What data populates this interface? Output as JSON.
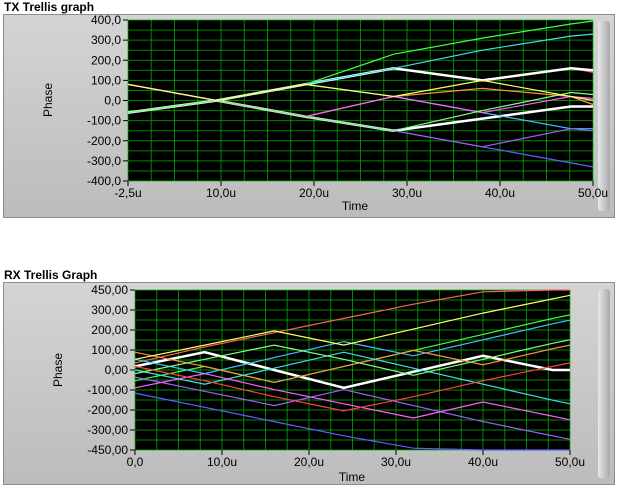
{
  "tx": {
    "title": "TX Trellis graph",
    "xlabel": "Time",
    "ylabel": "Phase",
    "yticks": [
      "400,0",
      "300,0",
      "200,0",
      "100,0",
      "0,0",
      "-100,0",
      "-200,0",
      "-300,0",
      "-400,0"
    ],
    "xticks": [
      "-2,5u",
      "10,0u",
      "20,0u",
      "30,0u",
      "40,0u",
      "50,0u"
    ]
  },
  "rx": {
    "title": "RX Trellis Graph",
    "xlabel": "Time",
    "ylabel": "Phase",
    "yticks": [
      "450,00",
      "300,00",
      "200,00",
      "100,00",
      "0,00",
      "-100,00",
      "-200,00",
      "-300,00",
      "-450,00"
    ],
    "xticks": [
      "0,0",
      "10,0u",
      "20,0u",
      "30,0u",
      "40,0u",
      "50,0u"
    ]
  },
  "colors": {
    "plot_bg": "#000000",
    "grid": "#00b400",
    "frame": "#c8c8c8"
  },
  "chart_data": [
    {
      "type": "line",
      "title": "TX Trellis graph",
      "xlabel": "Time",
      "ylabel": "Phase",
      "xlim": [
        -2.5,
        50
      ],
      "ylim": [
        -400,
        400
      ],
      "x": [
        -2.5,
        7.5,
        17.5,
        27.5,
        37.5,
        47.5,
        50
      ],
      "series": [
        {
          "color": "#ffffff",
          "values": [
            -60,
            0,
            -80,
            -150,
            -90,
            -30,
            -30
          ]
        },
        {
          "color": "#ff6060",
          "values": [
            80,
            0,
            80,
            160,
            100,
            160,
            140
          ]
        },
        {
          "color": "#ffffff",
          "values": [
            -60,
            0,
            80,
            160,
            100,
            160,
            150
          ]
        },
        {
          "color": "#40ff40",
          "values": [
            -60,
            0,
            80,
            230,
            310,
            380,
            395
          ]
        },
        {
          "color": "#6060ff",
          "values": [
            80,
            0,
            -80,
            -150,
            -230,
            -310,
            -330
          ]
        },
        {
          "color": "#40c0ff",
          "values": [
            -60,
            0,
            80,
            20,
            -60,
            -140,
            -140
          ]
        },
        {
          "color": "#ff9040",
          "values": [
            -60,
            0,
            -80,
            20,
            60,
            20,
            -20
          ]
        },
        {
          "color": "#a060ff",
          "values": [
            80,
            0,
            -80,
            -150,
            -230,
            -140,
            -150
          ]
        },
        {
          "color": "#40e0e0",
          "values": [
            -60,
            0,
            80,
            160,
            250,
            320,
            330
          ]
        },
        {
          "color": "#ff60ff",
          "values": [
            80,
            0,
            -80,
            20,
            -60,
            20,
            10
          ]
        },
        {
          "color": "#80ff80",
          "values": [
            -60,
            0,
            -80,
            -150,
            -50,
            40,
            30
          ]
        },
        {
          "color": "#ffff60",
          "values": [
            80,
            0,
            80,
            20,
            100,
            20,
            0
          ]
        }
      ]
    },
    {
      "type": "line",
      "title": "RX Trellis Graph",
      "xlabel": "Time",
      "ylabel": "Phase",
      "xlim": [
        0,
        50
      ],
      "ylim": [
        -450,
        450
      ],
      "x": [
        0,
        8,
        16,
        24,
        32,
        40,
        48,
        50
      ],
      "series": [
        {
          "color": "#ffffff",
          "values": [
            20,
            100,
            0,
            -100,
            -10,
            80,
            0,
            0
          ]
        },
        {
          "color": "#ff6060",
          "values": [
            40,
            130,
            210,
            290,
            370,
            440,
            450,
            450
          ]
        },
        {
          "color": "#40ff40",
          "values": [
            -60,
            20,
            -70,
            20,
            110,
            200,
            290,
            310
          ]
        },
        {
          "color": "#6060ff",
          "values": [
            -130,
            -210,
            -290,
            -370,
            -440,
            -450,
            -450,
            -450
          ]
        },
        {
          "color": "#40c0ff",
          "values": [
            60,
            -20,
            70,
            160,
            80,
            170,
            260,
            280
          ]
        },
        {
          "color": "#ff9040",
          "values": [
            100,
            20,
            -70,
            20,
            110,
            30,
            120,
            140
          ]
        },
        {
          "color": "#a060ff",
          "values": [
            -40,
            -120,
            -200,
            -110,
            -200,
            -290,
            -370,
            -390
          ]
        },
        {
          "color": "#40e0e0",
          "values": [
            0,
            -80,
            10,
            100,
            10,
            -80,
            -170,
            -190
          ]
        },
        {
          "color": "#ff60ff",
          "values": [
            -100,
            -20,
            -110,
            -190,
            -270,
            -180,
            -260,
            -280
          ]
        },
        {
          "color": "#ffff60",
          "values": [
            60,
            140,
            220,
            140,
            230,
            320,
            400,
            420
          ]
        },
        {
          "color": "#80ff80",
          "values": [
            -20,
            60,
            140,
            60,
            -30,
            60,
            150,
            170
          ]
        },
        {
          "color": "#ff4040",
          "values": [
            20,
            -60,
            -150,
            -230,
            -150,
            -60,
            20,
            40
          ]
        }
      ]
    }
  ]
}
